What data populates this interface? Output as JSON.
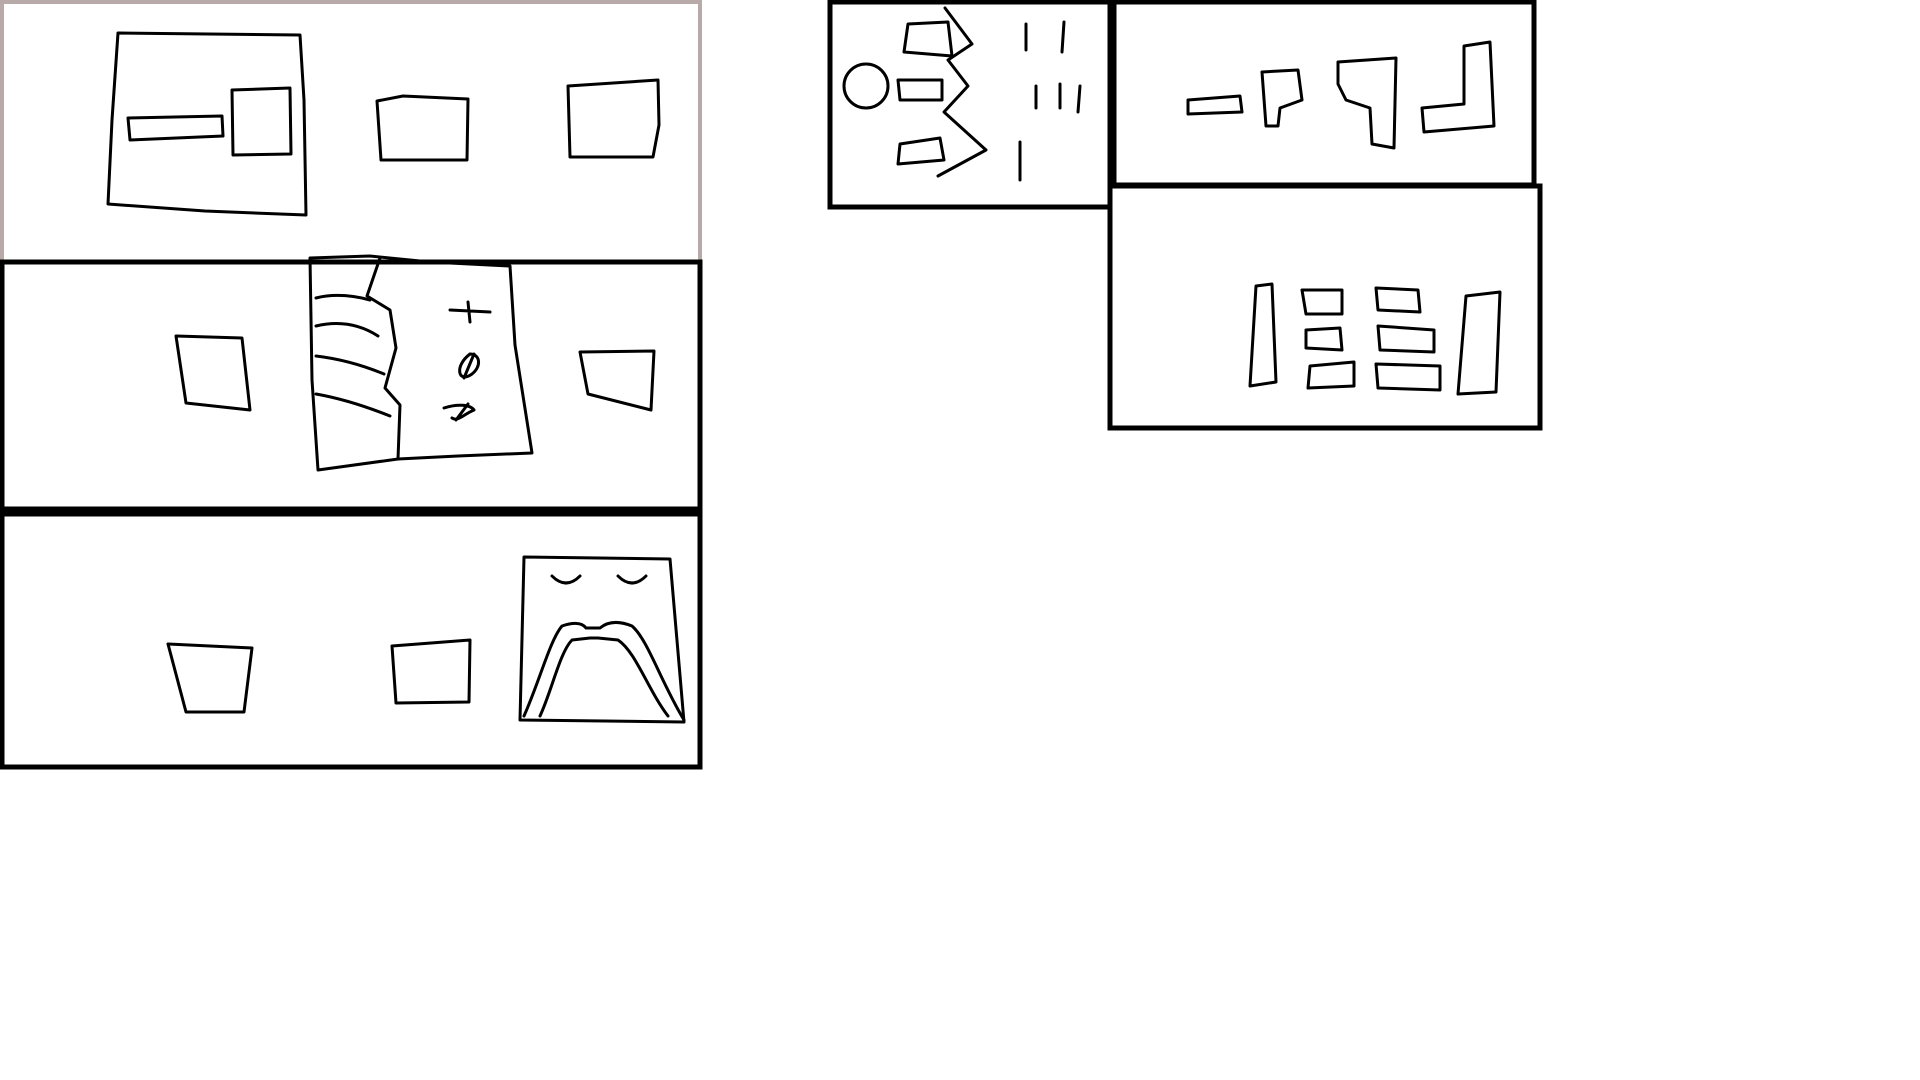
{
  "canvas": {
    "background": "#ffffff",
    "stroke_color": "#000000",
    "faint_frame_color": "#b9aaaa"
  },
  "panels": [
    {
      "id": "top-left-panel",
      "content": [
        "framed-group-with-bar-and-square",
        "square",
        "square"
      ]
    },
    {
      "id": "middle-left-panel",
      "content": [
        "square",
        "folded-page-with-marks",
        "square"
      ]
    },
    {
      "id": "bottom-left-panel",
      "content": [
        "square",
        "square",
        "arch-frame"
      ]
    },
    {
      "id": "top-center-panel",
      "content": [
        "circle",
        "tabs-column",
        "zigzag-line",
        "dash-columns"
      ]
    },
    {
      "id": "top-right-panel",
      "content": [
        "step-shapes"
      ]
    },
    {
      "id": "lower-right-panel",
      "content": [
        "bars-and-blocks"
      ]
    }
  ]
}
